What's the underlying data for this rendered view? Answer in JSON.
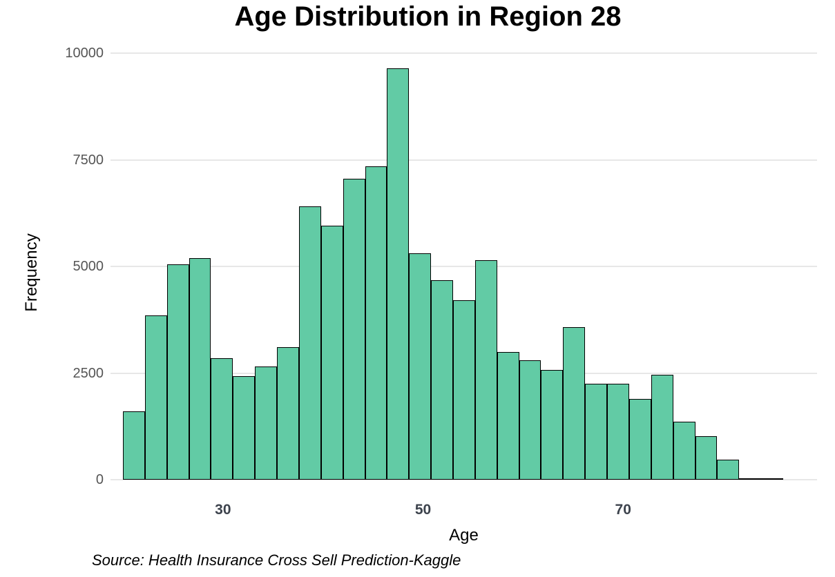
{
  "title": "Age Distribution in Region 28",
  "source_note": "Source: Health Insurance Cross Sell Prediction-Kaggle",
  "colors": {
    "bar_fill": "#62cba5",
    "bar_border": "#000000",
    "gridline": "#e7e7e7",
    "y_tick_label": "#555555",
    "x_tick_label": "#3d434d",
    "text": "#000000",
    "background": "#ffffff"
  },
  "chart_data": {
    "type": "bar",
    "chart_kind": "histogram",
    "title": "Age Distribution in Region 28",
    "xlabel": "Age",
    "ylabel": "Frequency",
    "bin_start": 20,
    "bin_width": 2.2,
    "frequencies": [
      1600,
      3850,
      5050,
      5200,
      2850,
      2430,
      2650,
      3100,
      6400,
      5950,
      7050,
      7350,
      9650,
      5300,
      4670,
      4200,
      5150,
      3000,
      2800,
      2580,
      3570,
      2250,
      2250,
      1900,
      2460,
      1360,
      1020,
      470,
      30,
      20
    ],
    "x_ticks": [
      30,
      50,
      70
    ],
    "y_ticks": [
      0,
      2500,
      5000,
      7500,
      10000
    ],
    "xlim": [
      20,
      86
    ],
    "ylim": [
      0,
      10000
    ],
    "grid": "horizontal",
    "legend": "none"
  }
}
